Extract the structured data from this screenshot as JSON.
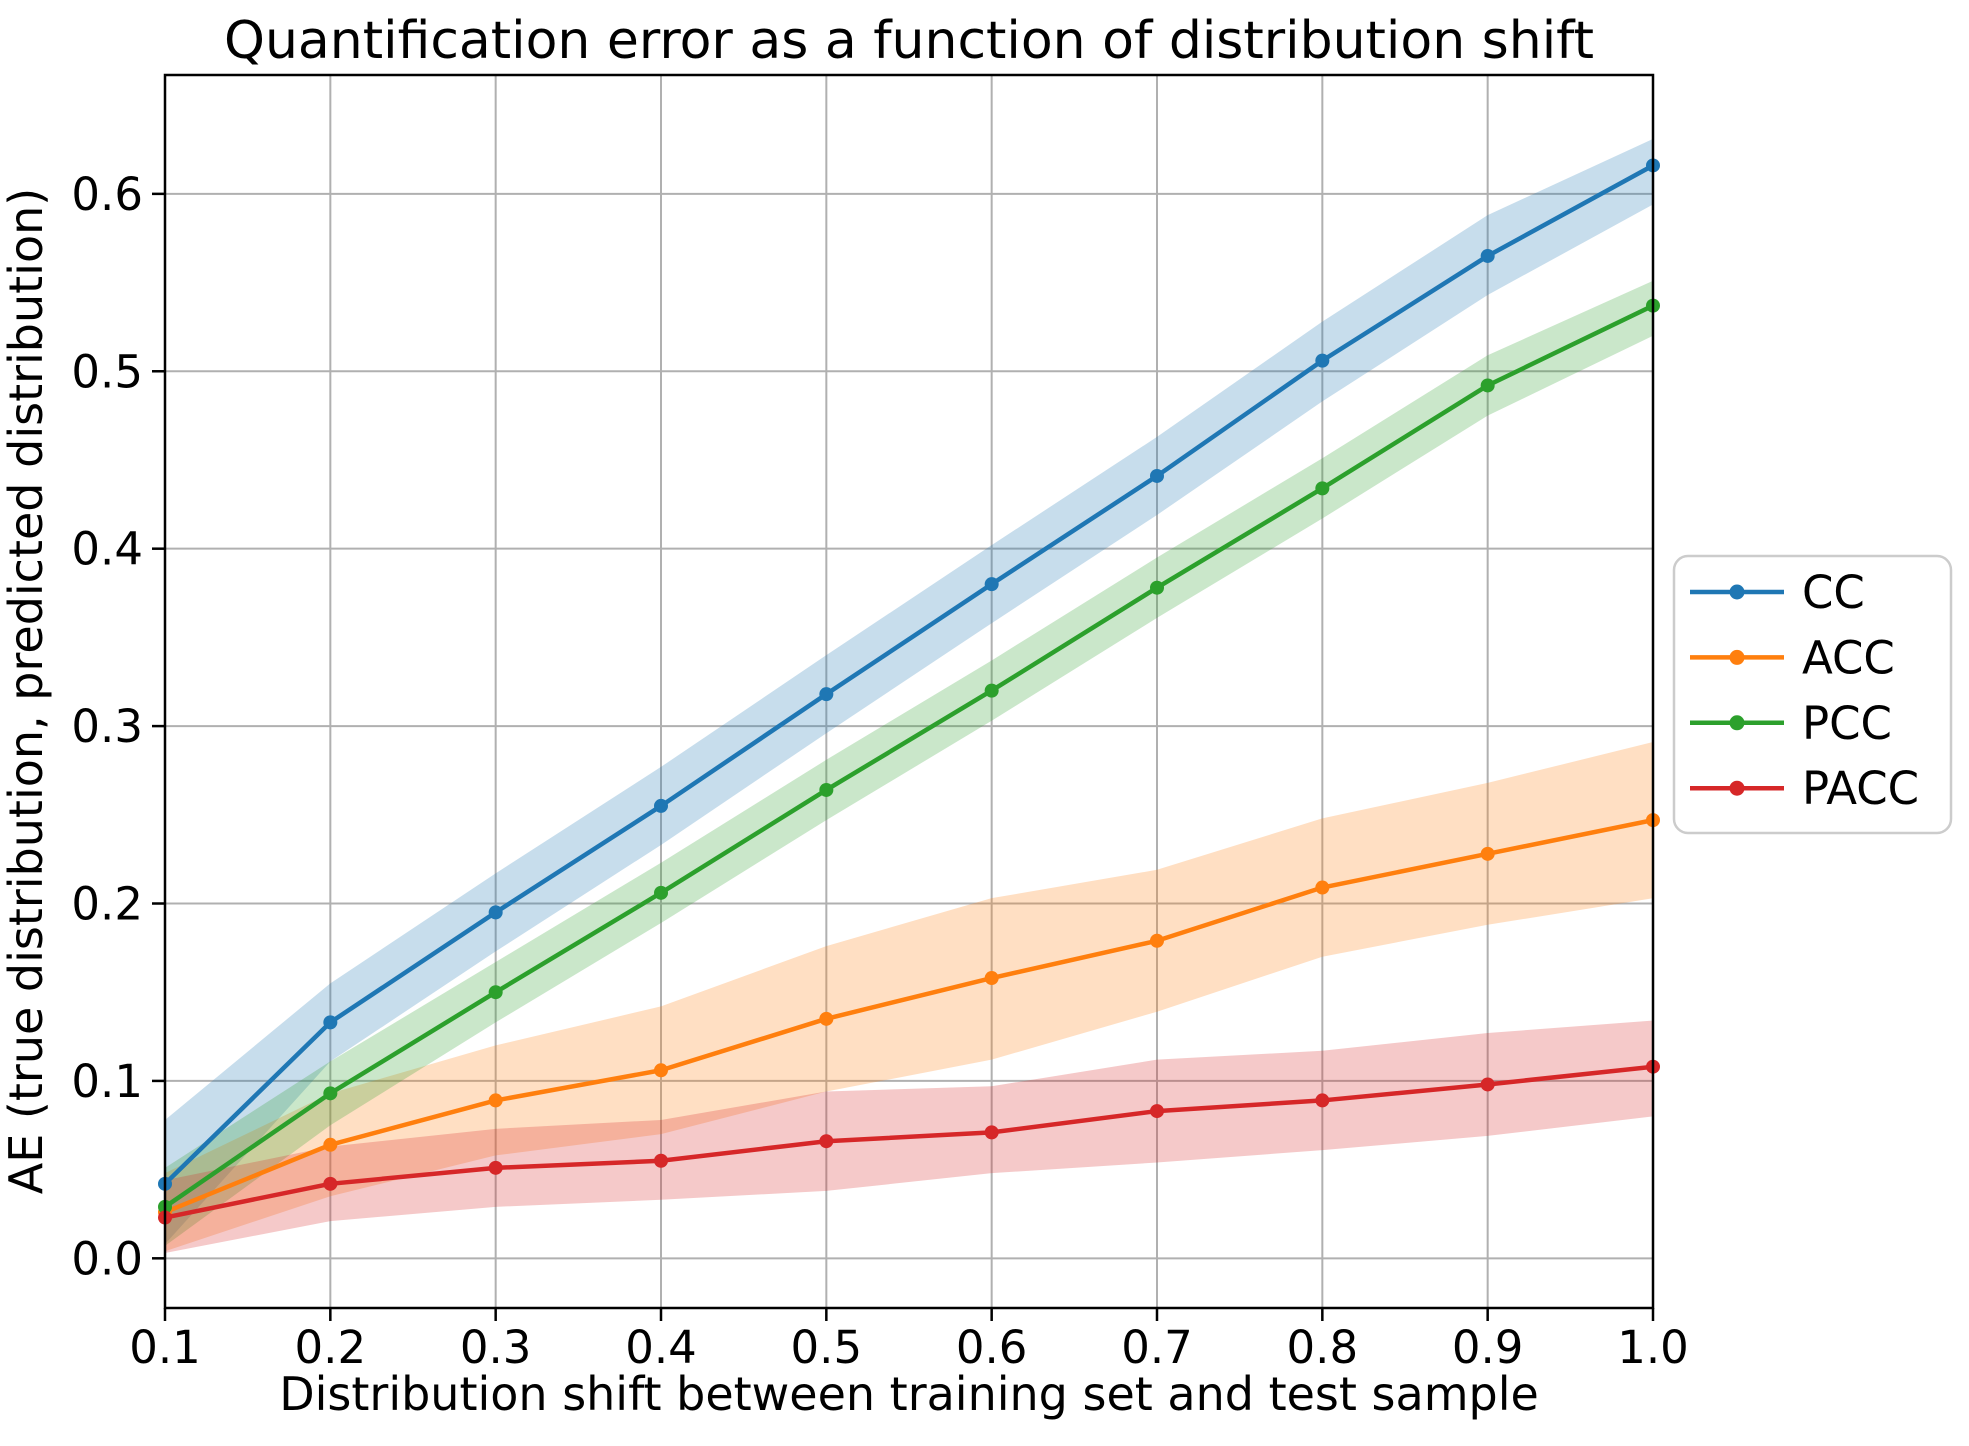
{
  "figure": {
    "title": "Quantification error as a function of distribution shift",
    "xlabel": "Distribution shift between training set and test sample",
    "ylabel": "AE (true distribution, predicted distribution)"
  },
  "chart_data": {
    "type": "line",
    "title": "Quantification error as a function of distribution shift",
    "xlabel": "Distribution shift between training set and test sample",
    "ylabel": "AE (true distribution, predicted distribution)",
    "x": [
      0.1,
      0.2,
      0.3,
      0.4,
      0.5,
      0.6,
      0.7,
      0.8,
      0.9,
      1.0
    ],
    "x_tick_labels": [
      "0.1",
      "0.2",
      "0.3",
      "0.4",
      "0.5",
      "0.6",
      "0.7",
      "0.8",
      "0.9",
      "1.0"
    ],
    "y_tick_labels": [
      "0.0",
      "0.1",
      "0.2",
      "0.3",
      "0.4",
      "0.5",
      "0.6"
    ],
    "xlim": [
      0.1,
      1.0
    ],
    "ylim": [
      -0.028,
      0.667
    ],
    "grid": true,
    "grid_color": "#b0b0b0",
    "background_color": "#ffffff",
    "band_opacity": 0.25,
    "legend_position": "right of axes, vertically centered",
    "series": [
      {
        "name": "CC",
        "color": "#1f77b4",
        "values": [
          0.042,
          0.133,
          0.195,
          0.255,
          0.318,
          0.38,
          0.441,
          0.506,
          0.565,
          0.616
        ],
        "band_lower": [
          0.008,
          0.111,
          0.173,
          0.233,
          0.296,
          0.358,
          0.419,
          0.483,
          0.543,
          0.594
        ],
        "band_upper": [
          0.078,
          0.155,
          0.217,
          0.277,
          0.34,
          0.402,
          0.463,
          0.528,
          0.588,
          0.631
        ]
      },
      {
        "name": "ACC",
        "color": "#ff7f0e",
        "values": [
          0.026,
          0.064,
          0.089,
          0.106,
          0.135,
          0.158,
          0.179,
          0.209,
          0.228,
          0.247
        ],
        "band_lower": [
          0.004,
          0.035,
          0.058,
          0.07,
          0.094,
          0.112,
          0.139,
          0.17,
          0.188,
          0.203
        ],
        "band_upper": [
          0.048,
          0.093,
          0.12,
          0.142,
          0.176,
          0.203,
          0.219,
          0.248,
          0.268,
          0.291
        ]
      },
      {
        "name": "PCC",
        "color": "#2ca02c",
        "values": [
          0.029,
          0.093,
          0.15,
          0.206,
          0.264,
          0.32,
          0.378,
          0.434,
          0.492,
          0.537
        ],
        "band_lower": [
          0.007,
          0.075,
          0.133,
          0.189,
          0.247,
          0.303,
          0.361,
          0.417,
          0.475,
          0.52
        ],
        "band_upper": [
          0.051,
          0.111,
          0.167,
          0.223,
          0.281,
          0.337,
          0.395,
          0.451,
          0.509,
          0.551
        ]
      },
      {
        "name": "PACC",
        "color": "#d62728",
        "values": [
          0.023,
          0.042,
          0.051,
          0.055,
          0.066,
          0.071,
          0.083,
          0.089,
          0.098,
          0.108
        ],
        "band_lower": [
          0.003,
          0.021,
          0.029,
          0.033,
          0.038,
          0.048,
          0.054,
          0.061,
          0.069,
          0.08
        ],
        "band_upper": [
          0.044,
          0.063,
          0.073,
          0.078,
          0.094,
          0.097,
          0.112,
          0.117,
          0.127,
          0.134
        ]
      }
    ]
  }
}
